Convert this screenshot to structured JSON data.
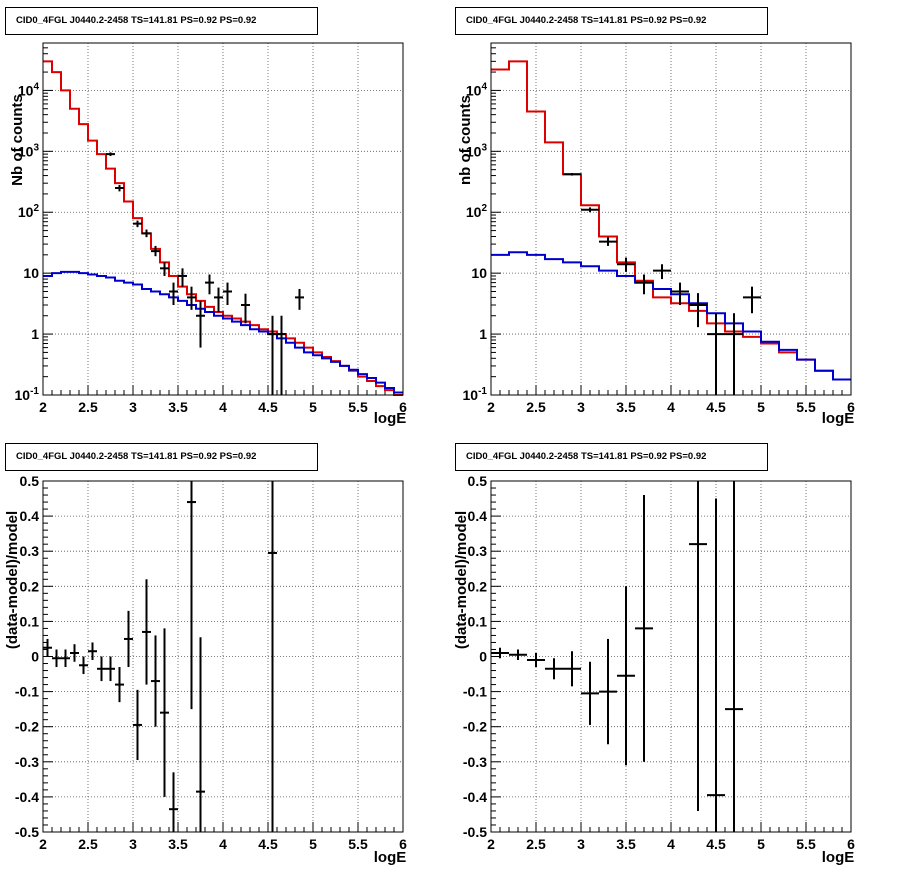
{
  "chart_data": [
    {
      "type": "line",
      "title": "CID0_4FGL J0440.2-2458 TS=141.81 PS=0.92 PS=0.92",
      "xlabel": "logE",
      "ylabel": "Nb of counts",
      "xlim": [
        2,
        6
      ],
      "ylim": [
        0.1,
        60000
      ],
      "yscale": "log",
      "grid": true,
      "xticks": [
        "2",
        "2.5",
        "3",
        "3.5",
        "4",
        "4.5",
        "5",
        "5.5",
        "6"
      ],
      "yticks": [
        {
          "v": 0.1,
          "b": "10",
          "e": "-1"
        },
        {
          "v": 1,
          "b": "1",
          "e": ""
        },
        {
          "v": 10,
          "b": "10",
          "e": ""
        },
        {
          "v": 100,
          "b": "10",
          "e": "2"
        },
        {
          "v": 1000,
          "b": "10",
          "e": "3"
        },
        {
          "v": 10000,
          "b": "10",
          "e": "4"
        }
      ],
      "binwidth": 0.1,
      "series": [
        {
          "color": "#dd0000",
          "x": [
            2.0,
            2.1,
            2.2,
            2.3,
            2.4,
            2.5,
            2.6,
            2.7,
            2.8,
            2.9,
            3.0,
            3.1,
            3.2,
            3.3,
            3.4,
            3.5,
            3.6,
            3.7,
            3.8,
            3.9,
            4.0,
            4.1,
            4.2,
            4.3,
            4.4,
            4.5,
            4.6,
            4.7,
            4.8,
            4.9,
            5.0,
            5.1,
            5.2,
            5.3,
            5.4,
            5.5,
            5.6,
            5.7,
            5.8,
            5.9
          ],
          "y": [
            30000,
            20000,
            10000,
            5000,
            2800,
            1500,
            900,
            520,
            300,
            150,
            80,
            45,
            25,
            15,
            9,
            6,
            4.5,
            3.5,
            2.8,
            2.3,
            2.0,
            1.8,
            1.6,
            1.4,
            1.2,
            1.1,
            1.0,
            0.85,
            0.72,
            0.6,
            0.5,
            0.42,
            0.36,
            0.3,
            0.25,
            0.2,
            0.17,
            0.14,
            0.12,
            0.1
          ]
        },
        {
          "color": "#0000cc",
          "x": [
            2.0,
            2.1,
            2.2,
            2.3,
            2.4,
            2.5,
            2.6,
            2.7,
            2.8,
            2.9,
            3.0,
            3.1,
            3.2,
            3.3,
            3.4,
            3.5,
            3.6,
            3.7,
            3.8,
            3.9,
            4.0,
            4.1,
            4.2,
            4.3,
            4.4,
            4.5,
            4.6,
            4.7,
            4.8,
            4.9,
            5.0,
            5.1,
            5.2,
            5.3,
            5.4,
            5.5,
            5.6,
            5.7,
            5.8,
            5.9
          ],
          "y": [
            9,
            10,
            10.5,
            10.5,
            10,
            9.5,
            9,
            8.5,
            7.5,
            7,
            6.5,
            5.5,
            5,
            4.5,
            4,
            3.5,
            3,
            2.6,
            2.3,
            2.0,
            1.8,
            1.6,
            1.4,
            1.2,
            1.1,
            1.0,
            0.85,
            0.72,
            0.6,
            0.5,
            0.45,
            0.4,
            0.35,
            0.3,
            0.26,
            0.22,
            0.19,
            0.16,
            0.13,
            0.11
          ]
        }
      ],
      "points": [
        {
          "x": 2.75,
          "y": 900,
          "lo": 840,
          "hi": 960
        },
        {
          "x": 2.85,
          "y": 250,
          "lo": 220,
          "hi": 280
        },
        {
          "x": 3.05,
          "y": 65,
          "lo": 57,
          "hi": 73
        },
        {
          "x": 3.15,
          "y": 45,
          "lo": 39,
          "hi": 52
        },
        {
          "x": 3.25,
          "y": 23,
          "lo": 19,
          "hi": 28
        },
        {
          "x": 3.35,
          "y": 12,
          "lo": 9,
          "hi": 15
        },
        {
          "x": 3.45,
          "y": 5,
          "lo": 3,
          "hi": 7
        },
        {
          "x": 3.55,
          "y": 9,
          "lo": 6,
          "hi": 12
        },
        {
          "x": 3.65,
          "y": 4,
          "lo": 2.5,
          "hi": 6
        },
        {
          "x": 3.75,
          "y": 2,
          "lo": 0.6,
          "hi": 3.5
        },
        {
          "x": 3.85,
          "y": 7,
          "lo": 4.5,
          "hi": 9.5
        },
        {
          "x": 3.95,
          "y": 4,
          "lo": 2.3,
          "hi": 5.8
        },
        {
          "x": 4.05,
          "y": 5,
          "lo": 3,
          "hi": 7
        },
        {
          "x": 4.25,
          "y": 3,
          "lo": 1.5,
          "hi": 4.6
        },
        {
          "x": 4.55,
          "y": 1,
          "lo": 0.1,
          "hi": 2
        },
        {
          "x": 4.65,
          "y": 1,
          "lo": 0.1,
          "hi": 2
        },
        {
          "x": 4.85,
          "y": 4,
          "lo": 2.5,
          "hi": 5.5
        }
      ]
    },
    {
      "type": "line",
      "title": "CID0_4FGL J0440.2-2458 TS=141.81 PS=0.92 PS=0.92",
      "xlabel": "logE",
      "ylabel": "nb of counts",
      "xlim": [
        2,
        6
      ],
      "ylim": [
        0.1,
        60000
      ],
      "yscale": "log",
      "grid": true,
      "xticks": [
        "2",
        "2.5",
        "3",
        "3.5",
        "4",
        "4.5",
        "5",
        "5.5",
        "6"
      ],
      "yticks": [
        {
          "v": 0.1,
          "b": "10",
          "e": "-1"
        },
        {
          "v": 1,
          "b": "1",
          "e": ""
        },
        {
          "v": 10,
          "b": "10",
          "e": ""
        },
        {
          "v": 100,
          "b": "10",
          "e": "2"
        },
        {
          "v": 1000,
          "b": "10",
          "e": "3"
        },
        {
          "v": 10000,
          "b": "10",
          "e": "4"
        }
      ],
      "binwidth": 0.2,
      "series": [
        {
          "color": "#dd0000",
          "x": [
            2.0,
            2.2,
            2.4,
            2.6,
            2.8,
            3.0,
            3.2,
            3.4,
            3.6,
            3.8,
            4.0,
            4.2,
            4.4,
            4.6,
            4.8,
            5.0,
            5.2,
            5.4,
            5.6,
            5.8
          ],
          "y": [
            22000,
            30000,
            4500,
            1400,
            420,
            130,
            40,
            15,
            7.5,
            4,
            3.2,
            2.4,
            1.5,
            1.1,
            0.9,
            0.7,
            0.5,
            0.38,
            0.25,
            0.18
          ]
        },
        {
          "color": "#0000cc",
          "x": [
            2.0,
            2.2,
            2.4,
            2.6,
            2.8,
            3.0,
            3.2,
            3.4,
            3.6,
            3.8,
            4.0,
            4.2,
            4.4,
            4.6,
            4.8,
            5.0,
            5.2,
            5.4,
            5.6,
            5.8
          ],
          "y": [
            20,
            22,
            20,
            17,
            15,
            13,
            11,
            9,
            7,
            5.5,
            4.5,
            3.2,
            2.2,
            1.5,
            1.1,
            0.75,
            0.55,
            0.38,
            0.25,
            0.18
          ]
        }
      ],
      "points": [
        {
          "x": 2.9,
          "y": 420,
          "lo": 400,
          "hi": 440
        },
        {
          "x": 3.1,
          "y": 110,
          "lo": 100,
          "hi": 120
        },
        {
          "x": 3.3,
          "y": 33,
          "lo": 28,
          "hi": 39
        },
        {
          "x": 3.5,
          "y": 14,
          "lo": 10.5,
          "hi": 18
        },
        {
          "x": 3.7,
          "y": 7,
          "lo": 4.5,
          "hi": 9.5
        },
        {
          "x": 3.9,
          "y": 11,
          "lo": 8,
          "hi": 14
        },
        {
          "x": 4.1,
          "y": 5,
          "lo": 3,
          "hi": 7
        },
        {
          "x": 4.3,
          "y": 3,
          "lo": 1.3,
          "hi": 4.7
        },
        {
          "x": 4.5,
          "y": 1,
          "lo": 0.1,
          "hi": 2.2
        },
        {
          "x": 4.7,
          "y": 1,
          "lo": 0.1,
          "hi": 2.2
        },
        {
          "x": 4.9,
          "y": 4,
          "lo": 2.2,
          "hi": 6
        }
      ]
    },
    {
      "type": "scatter",
      "title": "CID0_4FGL J0440.2-2458 TS=141.81 PS=0.92 PS=0.92",
      "xlabel": "logE",
      "ylabel": "(data-model)/model",
      "xlim": [
        2,
        6
      ],
      "ylim": [
        -0.5,
        0.5
      ],
      "yscale": "linear",
      "grid": true,
      "xticks": [
        "2",
        "2.5",
        "3",
        "3.5",
        "4",
        "4.5",
        "5",
        "5.5",
        "6"
      ],
      "yticks": [
        {
          "v": -0.5,
          "b": "-0.5",
          "e": ""
        },
        {
          "v": -0.4,
          "b": "-0.4",
          "e": ""
        },
        {
          "v": -0.3,
          "b": "-0.3",
          "e": ""
        },
        {
          "v": -0.2,
          "b": "-0.2",
          "e": ""
        },
        {
          "v": -0.1,
          "b": "-0.1",
          "e": ""
        },
        {
          "v": 0,
          "b": "0",
          "e": ""
        },
        {
          "v": 0.1,
          "b": "0.1",
          "e": ""
        },
        {
          "v": 0.2,
          "b": "0.2",
          "e": ""
        },
        {
          "v": 0.3,
          "b": "0.3",
          "e": ""
        },
        {
          "v": 0.4,
          "b": "0.4",
          "e": ""
        },
        {
          "v": 0.5,
          "b": "0.5",
          "e": ""
        }
      ],
      "binwidth": 0.1,
      "points": [
        {
          "x": 2.05,
          "y": 0.025,
          "lo": 0.0,
          "hi": 0.05
        },
        {
          "x": 2.15,
          "y": -0.005,
          "lo": -0.03,
          "hi": 0.02
        },
        {
          "x": 2.25,
          "y": -0.005,
          "lo": -0.03,
          "hi": 0.02
        },
        {
          "x": 2.35,
          "y": 0.01,
          "lo": -0.015,
          "hi": 0.035
        },
        {
          "x": 2.45,
          "y": -0.025,
          "lo": -0.05,
          "hi": 0.0
        },
        {
          "x": 2.55,
          "y": 0.015,
          "lo": -0.01,
          "hi": 0.04
        },
        {
          "x": 2.65,
          "y": -0.035,
          "lo": -0.07,
          "hi": 0.0
        },
        {
          "x": 2.75,
          "y": -0.035,
          "lo": -0.07,
          "hi": 0.0
        },
        {
          "x": 2.85,
          "y": -0.08,
          "lo": -0.13,
          "hi": -0.03
        },
        {
          "x": 2.95,
          "y": 0.05,
          "lo": -0.03,
          "hi": 0.13
        },
        {
          "x": 3.05,
          "y": -0.195,
          "lo": -0.295,
          "hi": -0.095
        },
        {
          "x": 3.15,
          "y": 0.07,
          "lo": -0.08,
          "hi": 0.22
        },
        {
          "x": 3.25,
          "y": -0.07,
          "lo": -0.2,
          "hi": 0.06
        },
        {
          "x": 3.35,
          "y": -0.16,
          "lo": -0.4,
          "hi": 0.08
        },
        {
          "x": 3.45,
          "y": -0.435,
          "lo": -0.5,
          "hi": -0.33
        },
        {
          "x": 3.65,
          "y": 0.44,
          "lo": -0.15,
          "hi": 0.5
        },
        {
          "x": 3.75,
          "y": -0.385,
          "lo": -0.5,
          "hi": 0.055
        },
        {
          "x": 4.55,
          "y": 0.295,
          "lo": -0.5,
          "hi": 0.5
        }
      ]
    },
    {
      "type": "scatter",
      "title": "CID0_4FGL J0440.2-2458 TS=141.81 PS=0.92 PS=0.92",
      "xlabel": "logE",
      "ylabel": "(data-model)/model",
      "xlim": [
        2,
        6
      ],
      "ylim": [
        -0.5,
        0.5
      ],
      "yscale": "linear",
      "grid": true,
      "xticks": [
        "2",
        "2.5",
        "3",
        "3.5",
        "4",
        "4.5",
        "5",
        "5.5",
        "6"
      ],
      "yticks": [
        {
          "v": -0.5,
          "b": "-0.5",
          "e": ""
        },
        {
          "v": -0.4,
          "b": "-0.4",
          "e": ""
        },
        {
          "v": -0.3,
          "b": "-0.3",
          "e": ""
        },
        {
          "v": -0.2,
          "b": "-0.2",
          "e": ""
        },
        {
          "v": -0.1,
          "b": "-0.1",
          "e": ""
        },
        {
          "v": 0,
          "b": "0",
          "e": ""
        },
        {
          "v": 0.1,
          "b": "0.1",
          "e": ""
        },
        {
          "v": 0.2,
          "b": "0.2",
          "e": ""
        },
        {
          "v": 0.3,
          "b": "0.3",
          "e": ""
        },
        {
          "v": 0.4,
          "b": "0.4",
          "e": ""
        },
        {
          "v": 0.5,
          "b": "0.5",
          "e": ""
        }
      ],
      "binwidth": 0.2,
      "points": [
        {
          "x": 2.1,
          "y": 0.01,
          "lo": -0.005,
          "hi": 0.025
        },
        {
          "x": 2.3,
          "y": 0.005,
          "lo": -0.01,
          "hi": 0.02
        },
        {
          "x": 2.5,
          "y": -0.01,
          "lo": -0.03,
          "hi": 0.01
        },
        {
          "x": 2.7,
          "y": -0.035,
          "lo": -0.065,
          "hi": -0.005
        },
        {
          "x": 2.9,
          "y": -0.035,
          "lo": -0.085,
          "hi": 0.015
        },
        {
          "x": 3.1,
          "y": -0.105,
          "lo": -0.195,
          "hi": -0.015
        },
        {
          "x": 3.3,
          "y": -0.1,
          "lo": -0.25,
          "hi": 0.05
        },
        {
          "x": 3.5,
          "y": -0.055,
          "lo": -0.31,
          "hi": 0.2
        },
        {
          "x": 3.7,
          "y": 0.08,
          "lo": -0.3,
          "hi": 0.46
        },
        {
          "x": 4.3,
          "y": 0.32,
          "lo": -0.44,
          "hi": 0.5
        },
        {
          "x": 4.5,
          "y": -0.395,
          "lo": -0.5,
          "hi": 0.45
        },
        {
          "x": 4.7,
          "y": -0.15,
          "lo": -0.5,
          "hi": 0.5
        }
      ]
    }
  ]
}
